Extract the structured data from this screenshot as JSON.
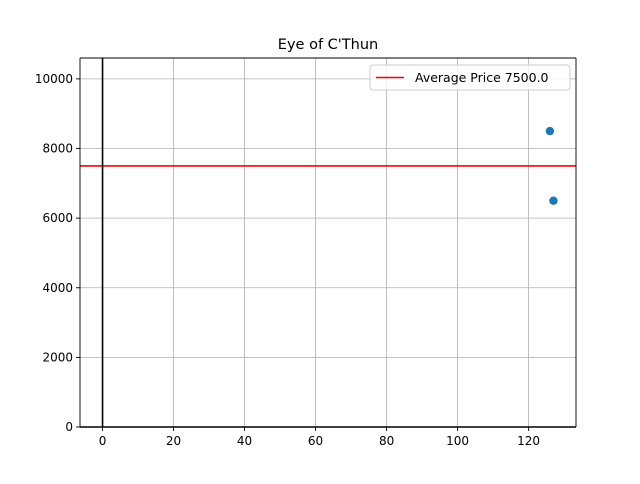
{
  "chart_data": {
    "type": "scatter",
    "title": "Eye of C'Thun",
    "xlabel": "",
    "ylabel": "",
    "xlim": [
      -6.35,
      133.35
    ],
    "ylim": [
      0,
      10600
    ],
    "x_ticks": [
      0,
      20,
      40,
      60,
      80,
      100,
      120
    ],
    "y_ticks": [
      0,
      2000,
      4000,
      6000,
      8000,
      10000
    ],
    "grid": true,
    "legend_position": "top-right",
    "series": [
      {
        "color": "#1f77b4",
        "points": [
          {
            "x": 126,
            "y": 8500
          },
          {
            "x": 127,
            "y": 6500
          }
        ]
      }
    ],
    "reference_lines": [
      {
        "orientation": "horizontal",
        "value": 7500,
        "color": "#ff0000",
        "label": "Average Price 7500.0"
      },
      {
        "orientation": "vertical",
        "value": 0,
        "color": "#000000"
      },
      {
        "orientation": "horizontal",
        "value": 0,
        "color": "#000000"
      }
    ]
  }
}
